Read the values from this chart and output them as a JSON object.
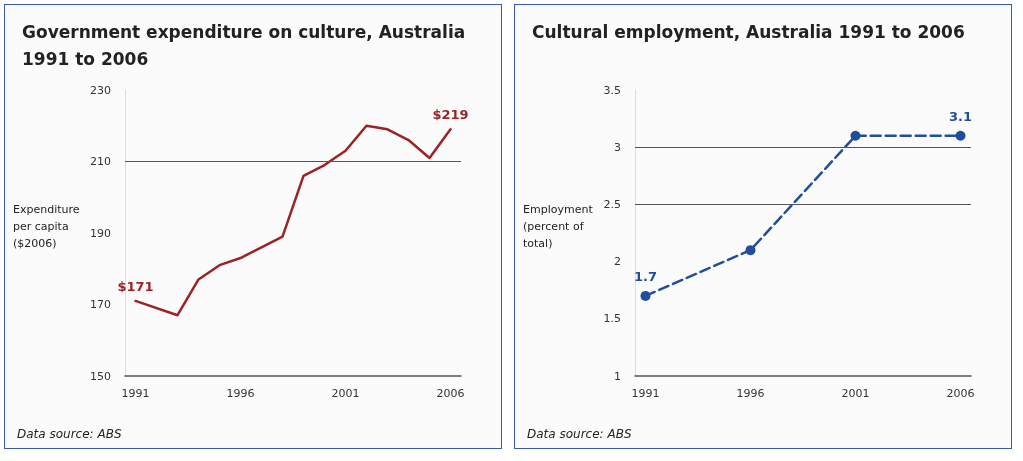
{
  "chart_data": [
    {
      "type": "line",
      "title": "Government expenditure on culture, Australia 1991 to 2006",
      "ylabel": "Expenditure per capita ($2006)",
      "x": [
        1991,
        1993,
        1994,
        1995,
        1996,
        1997,
        1998,
        1999,
        2000,
        2001,
        2002,
        2003,
        2004,
        2005,
        2006
      ],
      "series": [
        {
          "color": "#9b2226",
          "values": [
            171,
            167,
            177,
            181,
            183,
            186,
            189,
            206,
            209,
            213,
            220,
            219,
            216,
            211,
            219
          ],
          "value_labels": [
            "$171",
            null,
            null,
            null,
            null,
            null,
            null,
            null,
            null,
            null,
            null,
            null,
            null,
            null,
            "$219"
          ]
        }
      ],
      "xlim": [
        1990.5,
        2006.5
      ],
      "xticks": [
        1991,
        1996,
        2001,
        2006
      ],
      "ylim": [
        150,
        230
      ],
      "yticks": [
        150,
        170,
        190,
        210,
        230
      ],
      "ref_lines": [
        {
          "axis": "y",
          "value": 210
        }
      ],
      "grid": false,
      "marker": "none",
      "line_style": "solid",
      "annotations": [
        "Data source: ABS"
      ]
    },
    {
      "type": "line",
      "title": "Cultural employment, Australia 1991 to 2006",
      "ylabel": "Employment (percent of total)",
      "x": [
        1991,
        1996,
        2001,
        2006
      ],
      "series": [
        {
          "color": "#1f4e9c",
          "values": [
            1.7,
            2.1,
            3.1,
            3.1
          ],
          "value_labels": [
            "1.7",
            null,
            null,
            "3.1"
          ]
        }
      ],
      "xlim": [
        1990.5,
        2006.5
      ],
      "xticks": [
        1991,
        1996,
        2001,
        2006
      ],
      "ylim": [
        1,
        3.5
      ],
      "yticks": [
        1,
        1.5,
        2,
        2.5,
        3,
        3.5
      ],
      "ref_lines": [
        {
          "axis": "y",
          "value": 3
        },
        {
          "axis": "y",
          "value": 2.5
        }
      ],
      "grid": false,
      "marker": "circle",
      "line_style": "dashed",
      "annotations": [
        "Data source: ABS"
      ]
    }
  ]
}
